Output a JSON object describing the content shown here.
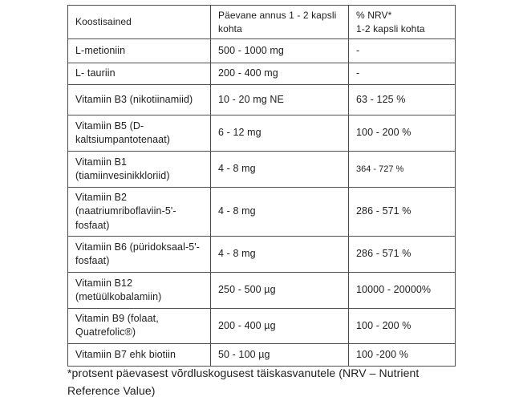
{
  "page": {
    "background_color": "#ffffff",
    "text_color": "#1d1d1f",
    "table_border_color": "#4e4e4e"
  },
  "table": {
    "headers": {
      "ingredients": "Koostisained",
      "dose_line1": "Päevane annus 1 - 2 kapsli",
      "dose_line2": "kohta",
      "nrv_line1": "% NRV*",
      "nrv_line2": "1-2 kapsli kohta"
    },
    "rows": [
      {
        "ingredient": "L-metioniin",
        "dose": "500 - 1000 mg",
        "nrv": "-"
      },
      {
        "ingredient": "L- tauriin",
        "dose": "200 - 400 mg",
        "nrv": "-"
      },
      {
        "ingredient": "Vitamiin B3 (nikotiinamiid)",
        "dose": "10 - 20 mg NE",
        "nrv": "63 - 125 %"
      },
      {
        "ingredient": "Vitamiin B5 (D-kaltsiumpantotenaat)",
        "dose": "6 - 12 mg",
        "nrv": "100 - 200 %"
      },
      {
        "ingredient": "Vitamiin B1 (tiamiinvesinikkloriid)",
        "dose": "4 - 8 mg",
        "nrv": "364 - 727 %"
      },
      {
        "ingredient": "Vitamiin B2 (naatriumriboflaviin-5'-fosfaat)",
        "dose": "4 - 8 mg",
        "nrv": "286 - 571 %"
      },
      {
        "ingredient": "Vitamiin B6 (püridoksaal-5'-fosfaat)",
        "dose": "4 - 8 mg",
        "nrv": "286 - 571 %"
      },
      {
        "ingredient": "Vitamiin B12 (metüülkobalamiin)",
        "dose": "250 - 500 µg",
        "nrv": "10000 - 20000%"
      },
      {
        "ingredient": "Vitamin B9 (folaat, Quatrefolic®)",
        "dose": "200 - 400 µg",
        "nrv": "100 - 200 %"
      },
      {
        "ingredient": "Vitamiin B7 ehk biotiin",
        "dose": "50 - 100 µg",
        "nrv": "100 -200 %"
      }
    ]
  },
  "footnote": {
    "text": "*protsent päevasest võrdluskogusest täiskasvanutele (NRV – Nutrient Reference Value)"
  }
}
